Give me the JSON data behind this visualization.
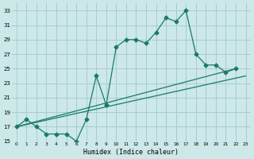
{
  "xlabel": "Humidex (Indice chaleur)",
  "background_color": "#cce8e8",
  "grid_color": "#aacccc",
  "line_color": "#1a7a6a",
  "xlim": [
    -0.5,
    23.5
  ],
  "ylim": [
    15,
    34
  ],
  "xticks": [
    0,
    1,
    2,
    3,
    4,
    5,
    6,
    7,
    8,
    9,
    10,
    11,
    12,
    13,
    14,
    15,
    16,
    17,
    18,
    19,
    20,
    21,
    22,
    23
  ],
  "yticks": [
    15,
    17,
    19,
    21,
    23,
    25,
    27,
    29,
    31,
    33
  ],
  "series_jagged": {
    "x": [
      0,
      1,
      2,
      3,
      4,
      5,
      6,
      7,
      8,
      9
    ],
    "y": [
      17,
      18,
      17,
      16,
      16,
      16,
      15,
      18,
      24,
      20
    ]
  },
  "series_main": {
    "x": [
      9,
      10,
      11,
      12,
      13,
      14,
      15,
      16,
      17,
      18,
      19,
      20,
      21,
      22
    ],
    "y": [
      20,
      28,
      29,
      29,
      28.5,
      30,
      32,
      31.5,
      33,
      27,
      25.5,
      25.5,
      24.5,
      25
    ]
  },
  "line1": {
    "x": [
      0,
      22
    ],
    "y": [
      17,
      25
    ]
  },
  "line2": {
    "x": [
      0,
      23
    ],
    "y": [
      17,
      24
    ]
  }
}
